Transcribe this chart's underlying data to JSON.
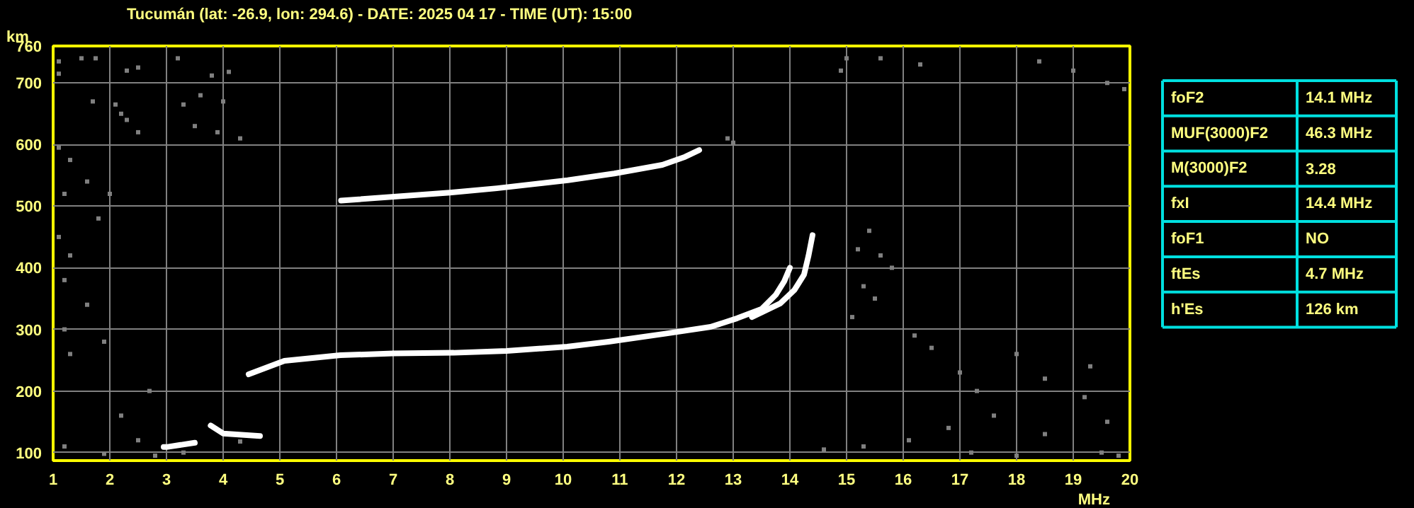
{
  "chart_data": [
    {
      "type": "scatter",
      "title": "Tucumán (lat: -26.9, lon: 294.6) - DATE: 2025 04 17 - TIME (UT): 15:00",
      "xlabel": "MHz",
      "ylabel": "km",
      "xlim": [
        1,
        20
      ],
      "xticks": [
        1,
        2,
        3,
        4,
        5,
        6,
        7,
        8,
        9,
        10,
        11,
        12,
        13,
        14,
        15,
        16,
        17,
        18,
        19,
        20
      ],
      "ylim": [
        87,
        760
      ],
      "yticks": [
        100,
        200,
        300,
        400,
        500,
        600,
        700,
        760
      ],
      "grid": true,
      "series": [
        {
          "type": "line",
          "marker": "none",
          "color": "#ffffff",
          "x": [
            4.45,
            5.08,
            6.07,
            7.0,
            8.07,
            9.0,
            10.07,
            10.8,
            11.8,
            12.6,
            13.07,
            13.5,
            13.75,
            13.9,
            14.0
          ],
          "values": [
            227,
            249,
            258,
            261,
            262,
            265,
            272,
            280,
            293,
            304,
            318,
            333,
            356,
            378,
            400
          ]
        },
        {
          "type": "line",
          "marker": "none",
          "color": "#ffffff",
          "x": [
            13.33,
            13.83,
            14.08,
            14.25,
            14.33,
            14.4
          ],
          "values": [
            320,
            342,
            364,
            389,
            420,
            453
          ]
        },
        {
          "type": "line",
          "marker": "none",
          "color": "#ffffff",
          "x": [
            6.08,
            8.0,
            8.83,
            10.08,
            10.9,
            11.75,
            12.15,
            12.4
          ],
          "values": [
            509,
            522,
            529,
            542,
            553,
            567,
            580,
            591
          ]
        },
        {
          "type": "line",
          "marker": "none",
          "color": "#ffffff",
          "x": [
            2.95,
            3.0,
            3.5,
            null,
            3.78,
            4.0,
            4.65
          ],
          "values": [
            109,
            109,
            116,
            null,
            144,
            131,
            127
          ]
        },
        {
          "type": "scatter",
          "marker": "square",
          "color": "#808080",
          "x": [
            1.1,
            1.1,
            1.5,
            1.75,
            2.3,
            2.5,
            2.1,
            2.2,
            3.2,
            3.6,
            3.3,
            3.8,
            4.1,
            4.0,
            1.7,
            2.3,
            2.5,
            3.5,
            3.9,
            4.3,
            1.1,
            1.3,
            1.6,
            1.2,
            2.0,
            1.8,
            1.1,
            1.3,
            1.2,
            1.6,
            1.2,
            1.9,
            1.3,
            2.7,
            2.2,
            2.5,
            1.2,
            1.9,
            2.8,
            3.3,
            4.3,
            15.0,
            14.9,
            15.6,
            16.3,
            18.4,
            19.0,
            19.6,
            15.4,
            15.2,
            15.6,
            15.8,
            15.3,
            15.1,
            15.5,
            16.2,
            16.5,
            17.0,
            17.3,
            18.0,
            18.5,
            19.3,
            19.2,
            17.6,
            16.8,
            16.1,
            15.3,
            14.6,
            17.2,
            18.0,
            19.5,
            19.8,
            18.5,
            19.6,
            19.9,
            12.9,
            13.0
          ],
          "values": [
            735,
            715,
            740,
            740,
            720,
            725,
            665,
            650,
            740,
            680,
            665,
            712,
            718,
            670,
            670,
            640,
            620,
            630,
            620,
            610,
            595,
            575,
            540,
            520,
            520,
            480,
            450,
            420,
            380,
            340,
            300,
            280,
            260,
            200,
            160,
            120,
            110,
            98,
            95,
            100,
            118,
            740,
            720,
            740,
            730,
            735,
            720,
            700,
            460,
            430,
            420,
            400,
            370,
            320,
            350,
            290,
            270,
            230,
            200,
            260,
            220,
            240,
            190,
            160,
            140,
            120,
            110,
            105,
            100,
            95,
            100,
            95,
            130,
            150,
            690,
            610,
            603
          ]
        }
      ]
    },
    {
      "type": "other",
      "annotations": [
        "foF2",
        "14.1 MHz",
        "MUF(3000)F2",
        "46.3 MHz",
        "M(3000)F2",
        "3.28",
        "fxI",
        "14.4 MHz",
        "foF1",
        "NO",
        "ftEs",
        "4.7 MHz",
        "h'Es",
        "126 km"
      ]
    }
  ]
}
